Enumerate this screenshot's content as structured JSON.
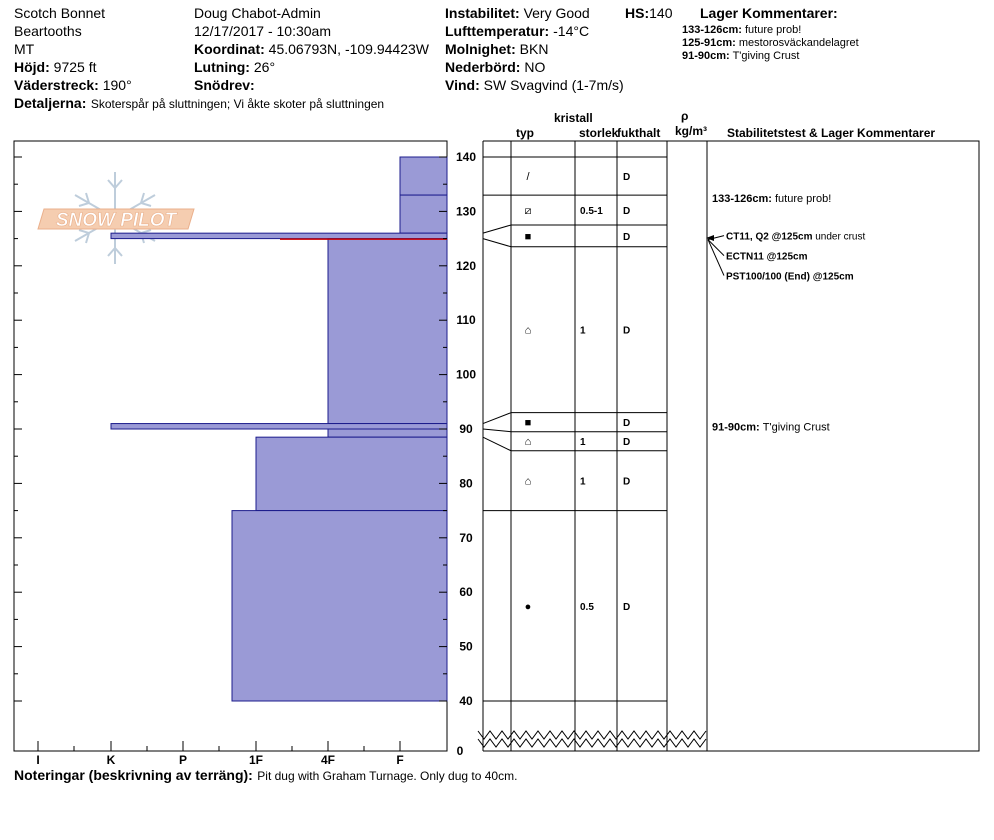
{
  "header": {
    "location": "Scotch Bonnet",
    "range": "Beartooths",
    "state": "MT",
    "elevation_label": "Höjd:",
    "elevation": "9725 ft",
    "aspect_label": "Väderstreck:",
    "aspect": "190°",
    "details_label": "Detaljerna:",
    "details": "Skoterspår på sluttningen;  Vi åkte skoter på sluttningen",
    "observer": "Doug Chabot-Admin",
    "datetime": "12/17/2017 - 10:30am",
    "coord_label": "Koordinat:",
    "coord": "45.06793N, -109.94423W",
    "slope_label": "Lutning:",
    "slope": "26°",
    "drift_label": "Snödrev:",
    "instability_label": "Instabilitet:",
    "instability": "Very Good",
    "hs_label": "HS:",
    "hs": "140",
    "airtemp_label": "Lufttemperatur:",
    "airtemp": "-14°C",
    "sky_label": "Molnighet:",
    "sky": "BKN",
    "precip_label": "Nederbörd:",
    "precip": "NO",
    "wind_label": "Vind:",
    "wind": "SW  Svagvind (1-7m/s)",
    "layer_comments_title": "Lager Kommentarer:",
    "layer_comments": [
      {
        "range": "133-126cm:",
        "text": "future prob!"
      },
      {
        "range": "125-91cm:",
        "text": "mestorosväckandelagret"
      },
      {
        "range": "91-90cm:",
        "text": "T'giving Crust"
      }
    ]
  },
  "columns": {
    "kristall": "kristall",
    "typ": "typ",
    "storlek": "storlek",
    "fukthalt": "fukthalt",
    "rho": "ρ",
    "density_unit": "kg/m³",
    "stability_title": "Stabilitetstest & Lager Kommentarer"
  },
  "logo": {
    "text": "SNOW PILOT"
  },
  "footer": {
    "notes_label": "Noteringar (beskrivning av terräng):",
    "notes": "Pit dug with Graham Turnage.  Only dug to 40cm."
  },
  "stability_notes": [
    {
      "depth": 125,
      "label": "CT11, Q2 @125cm",
      "extra": "under crust"
    },
    {
      "depth": 125,
      "label": "ECTN11 @125cm",
      "extra": ""
    },
    {
      "depth": 125,
      "label": "PST100/100 (End) @125cm",
      "extra": ""
    }
  ],
  "layer_notes": [
    {
      "depth": 133,
      "label": "133-126cm:",
      "text": "future prob!"
    },
    {
      "depth": 91,
      "label": "91-90cm:",
      "text": "T'giving Crust"
    }
  ],
  "chart_data": {
    "type": "bar",
    "title": "",
    "xlabel": "",
    "ylabel": "",
    "x_categories": [
      "I",
      "K",
      "P",
      "1F",
      "4F",
      "F"
    ],
    "y_ticks": [
      140,
      130,
      120,
      110,
      100,
      90,
      80,
      70,
      60,
      50,
      40
    ],
    "y_zero_label": "0",
    "ylim": [
      40,
      140
    ],
    "hardness_layers": [
      {
        "top": 140,
        "bottom": 133,
        "hardness": "F"
      },
      {
        "top": 133,
        "bottom": 126,
        "hardness": "F"
      },
      {
        "top": 126,
        "bottom": 125,
        "hardness": "K"
      },
      {
        "top": 125,
        "bottom": 91,
        "hardness": "4F"
      },
      {
        "top": 91,
        "bottom": 90,
        "hardness": "K"
      },
      {
        "top": 90,
        "bottom": 88.5,
        "hardness": "1F+"
      },
      {
        "top": 88.5,
        "bottom": 75,
        "hardness": "1F"
      },
      {
        "top": 75,
        "bottom": 40,
        "hardness": "1F-"
      }
    ],
    "crystal_layers": [
      {
        "top": 140,
        "bottom": 133,
        "grain": "/",
        "size": "",
        "moisture": "D"
      },
      {
        "top": 133,
        "bottom": 127.5,
        "grain": "⧄",
        "size": "0.5-1",
        "moisture": "D"
      },
      {
        "top": 127.5,
        "bottom": 123.5,
        "grain": "■",
        "size": "",
        "moisture": "D"
      },
      {
        "top": 123.5,
        "bottom": 93,
        "grain": "⌂",
        "size": "1",
        "moisture": "D"
      },
      {
        "top": 93,
        "bottom": 89.5,
        "grain": "■",
        "size": "",
        "moisture": "D"
      },
      {
        "top": 89.5,
        "bottom": 86,
        "grain": "⌂",
        "size": "1",
        "moisture": "D"
      },
      {
        "top": 86,
        "bottom": 75,
        "grain": "⌂",
        "size": "1",
        "moisture": "D"
      },
      {
        "top": 75,
        "bottom": 40,
        "grain": "●",
        "size": "0.5",
        "moisture": "D"
      }
    ],
    "grid": false,
    "legend": "none",
    "colors": {
      "fill": "#9a9ad6",
      "stroke": "#1c1c8c",
      "weak_line": "#cc0000"
    }
  }
}
